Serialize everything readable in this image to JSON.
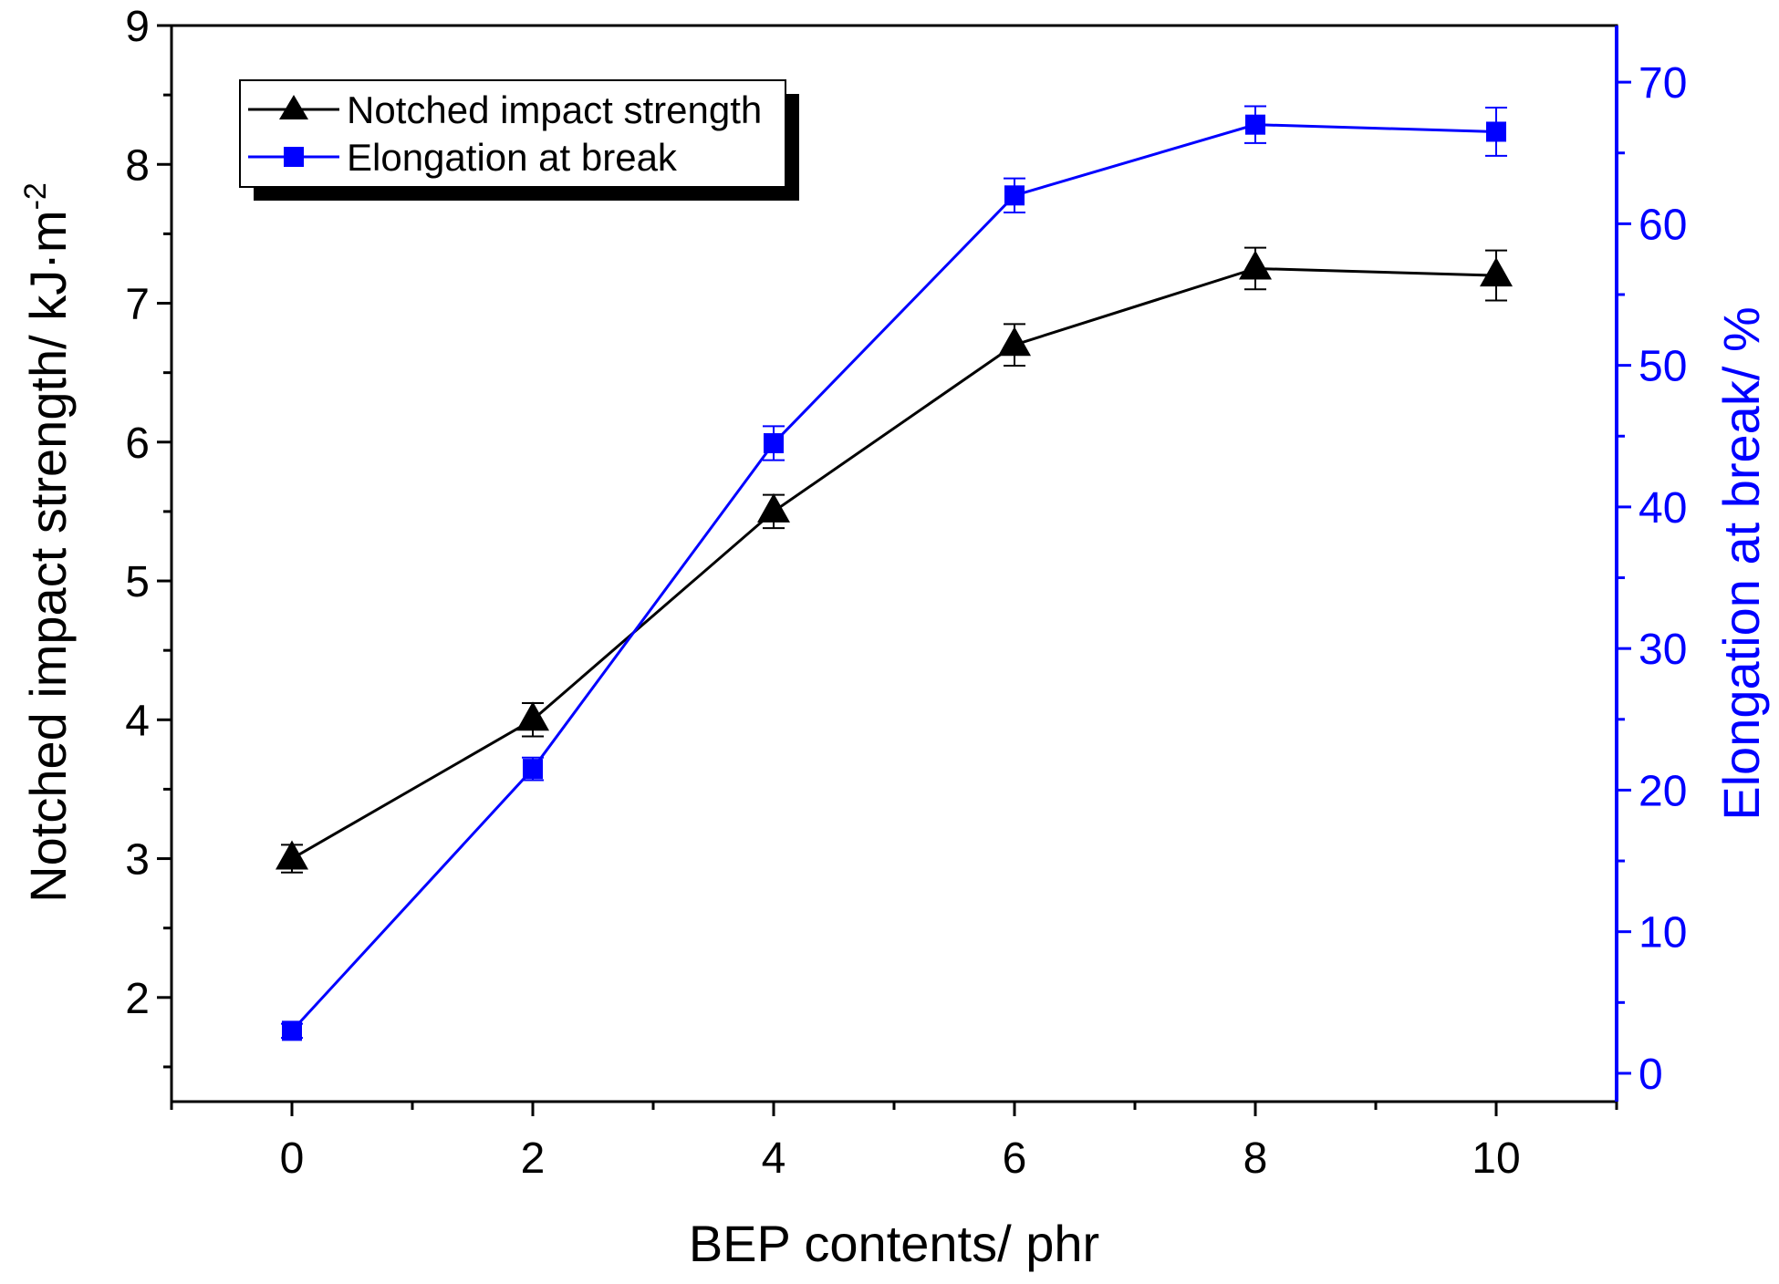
{
  "chart_data": {
    "type": "line",
    "xlabel": "BEP contents/ phr",
    "ylabel_left": "Notched impact strength/ kJ·m",
    "ylabel_left_superscript": "-2",
    "ylabel_right": "Elongation at break/ %",
    "xlim": [
      -1,
      11
    ],
    "ylim_left": [
      1.25,
      9
    ],
    "ylim_right": [
      -2,
      74
    ],
    "x_ticks": [
      "0",
      "2",
      "4",
      "6",
      "8",
      "10"
    ],
    "y_left_ticks": [
      "2",
      "3",
      "4",
      "5",
      "6",
      "7",
      "8",
      "9"
    ],
    "y_right_ticks": [
      "0",
      "10",
      "20",
      "30",
      "40",
      "50",
      "60",
      "70"
    ],
    "legend_position": "top-left",
    "series": [
      {
        "name": "Notched impact strength",
        "axis": "left",
        "color": "#000000",
        "marker": "triangle",
        "x": [
          0,
          2,
          4,
          6,
          8,
          10
        ],
        "values": [
          3.0,
          4.0,
          5.5,
          6.7,
          7.25,
          7.2
        ],
        "errors": [
          0.1,
          0.12,
          0.12,
          0.15,
          0.15,
          0.18
        ]
      },
      {
        "name": "Elongation at break",
        "axis": "right",
        "color": "#0000ff",
        "marker": "square",
        "x": [
          0,
          2,
          4,
          6,
          8,
          10
        ],
        "values": [
          3.0,
          21.5,
          44.5,
          62.0,
          67.0,
          66.5
        ],
        "errors": [
          0.5,
          0.8,
          1.2,
          1.2,
          1.3,
          1.7
        ]
      }
    ]
  }
}
